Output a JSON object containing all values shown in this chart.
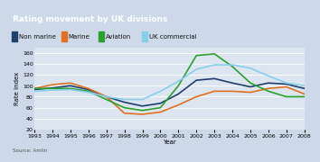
{
  "title": "Rating movement by UK divisions",
  "source": "Source: Amlin",
  "xlabel": "Year",
  "ylabel": "Rate index",
  "title_bg_color": "#1e3f6e",
  "title_text_color": "#ffffff",
  "legend_bg_color": "#cdd9e8",
  "plot_bg_color": "#dde6f0",
  "fig_bg_color": "#cdd9e8",
  "ylim": [
    20,
    170
  ],
  "yticks": [
    20,
    40,
    60,
    80,
    100,
    120,
    140,
    160
  ],
  "years": [
    1993,
    1994,
    1995,
    1996,
    1997,
    1998,
    1999,
    2000,
    2001,
    2002,
    2003,
    2004,
    2005,
    2006,
    2007,
    2008
  ],
  "non_marine": [
    93,
    96,
    100,
    93,
    80,
    70,
    63,
    68,
    85,
    110,
    113,
    105,
    98,
    105,
    103,
    95
  ],
  "marine": [
    95,
    102,
    105,
    95,
    80,
    50,
    48,
    52,
    65,
    80,
    90,
    90,
    88,
    95,
    98,
    85
  ],
  "aviation": [
    95,
    95,
    95,
    90,
    75,
    60,
    55,
    60,
    100,
    155,
    158,
    135,
    105,
    90,
    80,
    80
  ],
  "uk_commercial": [
    90,
    92,
    93,
    88,
    80,
    75,
    75,
    90,
    108,
    130,
    138,
    138,
    132,
    118,
    105,
    100
  ],
  "non_marine_color": "#1e3f6e",
  "marine_color": "#e07020",
  "aviation_color": "#2ca02c",
  "uk_commercial_color": "#87ceeb",
  "line_width": 1.2,
  "legend_labels": [
    "Non marine",
    "Marine",
    "Aviation",
    "UK commercial"
  ],
  "font_size_title": 6.5,
  "font_size_axis": 5,
  "font_size_tick": 4.5,
  "font_size_legend": 5,
  "font_size_source": 4
}
